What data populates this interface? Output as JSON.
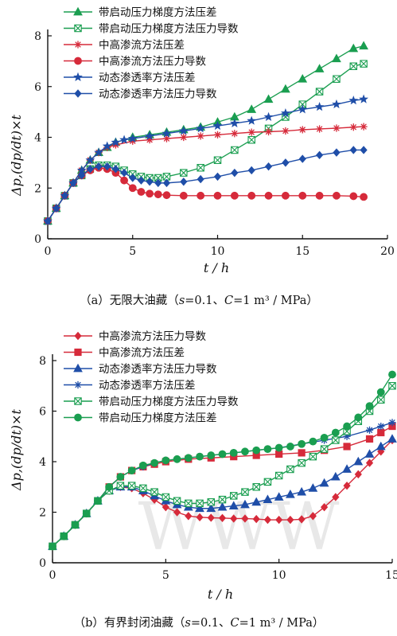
{
  "charts": [
    {
      "caption": {
        "prefix": "（a）无限大油藏（",
        "s": "s",
        "s_val": "=0.1、",
        "C": "C",
        "C_val": "=1 m³ / MPa）"
      }
    },
    {
      "caption": {
        "prefix": "（b）有界封闭油藏（",
        "s": "s",
        "s_val": "=0.1、",
        "C": "C",
        "C_val": "=1 m³ / MPa）"
      }
    }
  ],
  "ylabel_text": "Δp,(dp/dt)×t",
  "xlabel_text": "t / h",
  "watermark": "WWW",
  "chart_data": [
    {
      "type": "line",
      "xlim": [
        0,
        20
      ],
      "ylim": [
        0,
        8
      ],
      "xticks": [
        0,
        5,
        10,
        15,
        20
      ],
      "yticks": [
        0,
        2,
        4,
        6,
        8
      ],
      "legend_position": "top-left",
      "series": [
        {
          "name": "带启动压力梯度方法压差",
          "color": "#1a9e50",
          "marker": "triangle",
          "x": [
            0,
            0.5,
            1,
            1.5,
            2,
            2.5,
            3,
            3.5,
            4,
            5,
            6,
            7,
            8,
            9,
            10,
            11,
            12,
            13,
            14,
            15,
            16,
            17,
            18,
            18.6
          ],
          "y": [
            0.7,
            1.2,
            1.7,
            2.2,
            2.7,
            3.1,
            3.4,
            3.6,
            3.8,
            4.0,
            4.1,
            4.2,
            4.3,
            4.4,
            4.6,
            4.8,
            5.1,
            5.5,
            5.9,
            6.3,
            6.7,
            7.1,
            7.5,
            7.6
          ]
        },
        {
          "name": "带启动压力梯度方法压力导数",
          "color": "#1a9e50",
          "marker": "box-x",
          "x": [
            0,
            0.5,
            1,
            1.5,
            2,
            2.5,
            3,
            3.5,
            4,
            4.5,
            5,
            5.5,
            6,
            6.5,
            7,
            8,
            9,
            10,
            11,
            12,
            13,
            14,
            15,
            16,
            17,
            18,
            18.6
          ],
          "y": [
            0.7,
            1.2,
            1.7,
            2.2,
            2.5,
            2.75,
            2.9,
            2.9,
            2.85,
            2.7,
            2.55,
            2.45,
            2.4,
            2.4,
            2.45,
            2.6,
            2.8,
            3.1,
            3.5,
            3.9,
            4.35,
            4.8,
            5.3,
            5.8,
            6.3,
            6.8,
            6.9
          ]
        },
        {
          "name": "中高渗流方法压差",
          "color": "#d62a3a",
          "marker": "asterisk",
          "x": [
            0,
            0.5,
            1,
            1.5,
            2,
            2.5,
            3,
            3.5,
            4,
            5,
            6,
            7,
            8,
            9,
            10,
            11,
            12,
            13,
            14,
            15,
            16,
            17,
            18,
            18.6
          ],
          "y": [
            0.7,
            1.2,
            1.7,
            2.2,
            2.7,
            3.1,
            3.4,
            3.6,
            3.7,
            3.85,
            3.9,
            3.95,
            4.0,
            4.05,
            4.1,
            4.15,
            4.2,
            4.22,
            4.25,
            4.3,
            4.33,
            4.36,
            4.4,
            4.42
          ]
        },
        {
          "name": "中高渗流方法压力导数",
          "color": "#d62a3a",
          "marker": "circle",
          "x": [
            0,
            0.5,
            1,
            1.5,
            2,
            2.5,
            3,
            3.5,
            4,
            4.5,
            5,
            5.5,
            6,
            6.5,
            7,
            8,
            9,
            10,
            11,
            12,
            13,
            14,
            15,
            16,
            17,
            18,
            18.6
          ],
          "y": [
            0.7,
            1.2,
            1.7,
            2.2,
            2.5,
            2.7,
            2.8,
            2.75,
            2.6,
            2.3,
            2.0,
            1.85,
            1.78,
            1.75,
            1.72,
            1.7,
            1.7,
            1.7,
            1.7,
            1.7,
            1.7,
            1.7,
            1.7,
            1.7,
            1.7,
            1.68,
            1.65
          ]
        },
        {
          "name": "动态渗透率方法压差",
          "color": "#1f4ea8",
          "marker": "star",
          "x": [
            0,
            0.5,
            1,
            1.5,
            2,
            2.5,
            3,
            3.5,
            4,
            4.5,
            5,
            6,
            7,
            8,
            9,
            10,
            11,
            12,
            13,
            14,
            15,
            16,
            17,
            18,
            18.6
          ],
          "y": [
            0.7,
            1.2,
            1.7,
            2.2,
            2.7,
            3.1,
            3.4,
            3.65,
            3.8,
            3.9,
            3.95,
            4.05,
            4.15,
            4.25,
            4.35,
            4.45,
            4.55,
            4.65,
            4.8,
            4.95,
            5.1,
            5.2,
            5.3,
            5.45,
            5.5
          ]
        },
        {
          "name": "动态渗透率方法压力导数",
          "color": "#1f4ea8",
          "marker": "diamond",
          "x": [
            0,
            0.5,
            1,
            1.5,
            2,
            2.5,
            3,
            3.5,
            4,
            4.5,
            5,
            5.5,
            6,
            6.5,
            7,
            8,
            9,
            10,
            11,
            12,
            13,
            14,
            15,
            16,
            17,
            18,
            18.6
          ],
          "y": [
            0.7,
            1.2,
            1.7,
            2.2,
            2.5,
            2.75,
            2.85,
            2.85,
            2.75,
            2.6,
            2.4,
            2.3,
            2.25,
            2.2,
            2.2,
            2.25,
            2.35,
            2.45,
            2.6,
            2.7,
            2.85,
            3.0,
            3.15,
            3.3,
            3.4,
            3.5,
            3.5
          ]
        }
      ]
    },
    {
      "type": "line",
      "xlim": [
        0,
        15
      ],
      "ylim": [
        0,
        8
      ],
      "xticks": [
        0,
        5,
        10,
        15
      ],
      "yticks": [
        0,
        2,
        4,
        6,
        8
      ],
      "legend_position": "top-left",
      "series": [
        {
          "name": "中高渗流方法压力导数",
          "color": "#d62a3a",
          "marker": "diamond",
          "x": [
            0,
            0.5,
            1,
            1.5,
            2,
            2.5,
            3,
            3.5,
            4,
            4.5,
            5,
            5.5,
            6,
            6.5,
            7,
            7.5,
            8,
            8.5,
            9,
            9.5,
            10,
            10.5,
            11,
            11.5,
            12,
            12.5,
            13,
            13.5,
            14,
            14.5,
            15
          ],
          "y": [
            0.65,
            1.05,
            1.5,
            1.95,
            2.45,
            2.85,
            3.0,
            2.95,
            2.75,
            2.5,
            2.2,
            2.0,
            1.85,
            1.8,
            1.78,
            1.77,
            1.75,
            1.75,
            1.73,
            1.7,
            1.7,
            1.7,
            1.72,
            1.85,
            2.2,
            2.6,
            3.05,
            3.5,
            3.95,
            4.4,
            4.85
          ]
        },
        {
          "name": "中高渗流方法压差",
          "color": "#d62a3a",
          "marker": "square",
          "x": [
            0,
            0.5,
            1,
            1.5,
            2,
            2.5,
            3,
            3.5,
            4,
            4.5,
            5,
            6,
            7,
            8,
            9,
            10,
            11,
            12,
            13,
            14,
            14.5,
            15
          ],
          "y": [
            0.65,
            1.05,
            1.5,
            1.95,
            2.45,
            3.0,
            3.4,
            3.65,
            3.8,
            3.9,
            4.0,
            4.1,
            4.15,
            4.2,
            4.25,
            4.3,
            4.35,
            4.45,
            4.6,
            4.9,
            5.15,
            5.4
          ]
        },
        {
          "name": "动态渗透率方法压力导数",
          "color": "#1f4ea8",
          "marker": "triangle",
          "x": [
            0,
            0.5,
            1,
            1.5,
            2,
            2.5,
            3,
            3.5,
            4,
            4.5,
            5,
            5.5,
            6,
            6.5,
            7,
            7.5,
            8,
            8.5,
            9,
            9.5,
            10,
            10.5,
            11,
            11.5,
            12,
            12.5,
            13,
            13.5,
            14,
            14.5,
            15
          ],
          "y": [
            0.65,
            1.05,
            1.5,
            1.95,
            2.45,
            2.85,
            3.0,
            3.0,
            2.85,
            2.65,
            2.45,
            2.3,
            2.2,
            2.15,
            2.15,
            2.2,
            2.25,
            2.3,
            2.4,
            2.5,
            2.6,
            2.7,
            2.8,
            2.95,
            3.15,
            3.4,
            3.7,
            4.0,
            4.3,
            4.6,
            4.9
          ]
        },
        {
          "name": "动态渗透率方法压差",
          "color": "#1f4ea8",
          "marker": "asterisk",
          "x": [
            0,
            0.5,
            1,
            1.5,
            2,
            2.5,
            3,
            3.5,
            4,
            4.5,
            5,
            6,
            7,
            8,
            9,
            10,
            11,
            12,
            13,
            14,
            14.5,
            15
          ],
          "y": [
            0.65,
            1.05,
            1.5,
            1.95,
            2.45,
            3.0,
            3.4,
            3.65,
            3.8,
            3.95,
            4.05,
            4.15,
            4.25,
            4.35,
            4.45,
            4.55,
            4.7,
            4.85,
            5.0,
            5.25,
            5.4,
            5.55
          ]
        },
        {
          "name": "带启动压力梯度方法压力导数",
          "color": "#1a9e50",
          "marker": "box-x",
          "x": [
            0,
            0.5,
            1,
            1.5,
            2,
            2.5,
            3,
            3.5,
            4,
            4.5,
            5,
            5.5,
            6,
            6.5,
            7,
            7.5,
            8,
            8.5,
            9,
            9.5,
            10,
            10.5,
            11,
            11.5,
            12,
            12.5,
            13,
            13.5,
            14,
            14.5,
            15
          ],
          "y": [
            0.65,
            1.05,
            1.5,
            1.95,
            2.45,
            2.85,
            3.05,
            3.05,
            2.95,
            2.8,
            2.6,
            2.45,
            2.35,
            2.35,
            2.4,
            2.5,
            2.65,
            2.8,
            3.0,
            3.2,
            3.45,
            3.7,
            3.95,
            4.2,
            4.5,
            4.85,
            5.2,
            5.6,
            6.0,
            6.45,
            7.0
          ]
        },
        {
          "name": "带启动压力梯度方法压差",
          "color": "#1a9e50",
          "marker": "circle",
          "x": [
            0,
            0.5,
            1,
            1.5,
            2,
            2.5,
            3,
            3.5,
            4,
            4.5,
            5,
            5.5,
            6,
            6.5,
            7,
            7.5,
            8,
            8.5,
            9,
            9.5,
            10,
            10.5,
            11,
            11.5,
            12,
            12.5,
            13,
            13.5,
            14,
            14.5,
            15
          ],
          "y": [
            0.65,
            1.05,
            1.5,
            1.95,
            2.45,
            3.0,
            3.4,
            3.65,
            3.85,
            3.95,
            4.05,
            4.1,
            4.15,
            4.2,
            4.25,
            4.3,
            4.35,
            4.4,
            4.45,
            4.5,
            4.55,
            4.6,
            4.7,
            4.8,
            4.95,
            5.15,
            5.4,
            5.75,
            6.2,
            6.75,
            7.45
          ]
        }
      ]
    }
  ]
}
